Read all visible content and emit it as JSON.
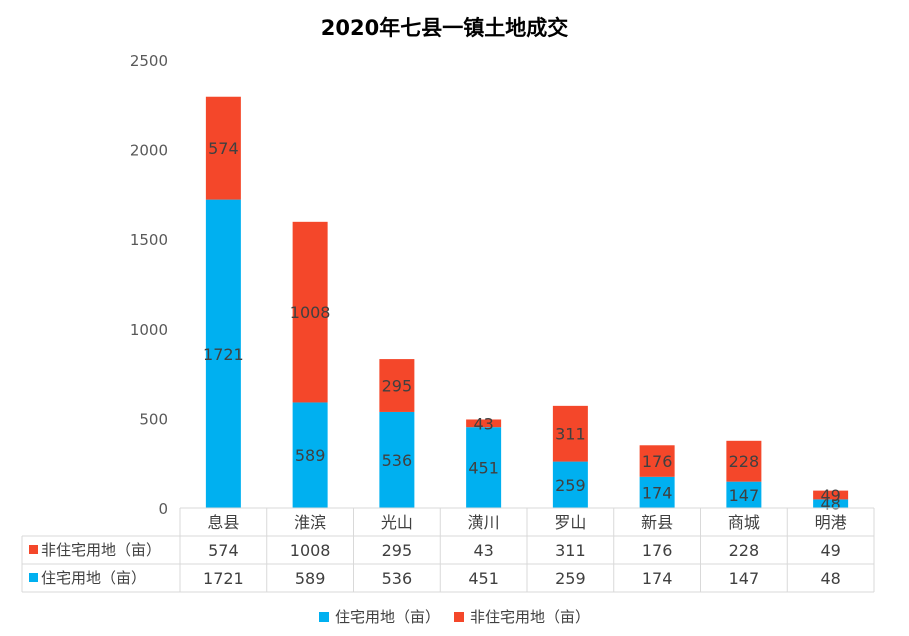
{
  "chart_data": {
    "type": "bar",
    "stacked": true,
    "title": "2020年七县一镇土地成交",
    "categories": [
      "息县",
      "淮滨",
      "光山",
      "潢川",
      "罗山",
      "新县",
      "商城",
      "明港"
    ],
    "ylim": [
      0,
      2500
    ],
    "yticks": [
      0,
      500,
      1000,
      1500,
      2000,
      2500
    ],
    "grid": false,
    "legend_position": "bottom",
    "data_table": true,
    "series": [
      {
        "name": "住宅用地（亩）",
        "color": "#00B0F0",
        "values": [
          1721,
          589,
          536,
          451,
          259,
          174,
          147,
          48
        ]
      },
      {
        "name": "非住宅用地（亩）",
        "color": "#F4472A",
        "values": [
          574,
          1008,
          295,
          43,
          311,
          176,
          228,
          49
        ]
      }
    ]
  }
}
